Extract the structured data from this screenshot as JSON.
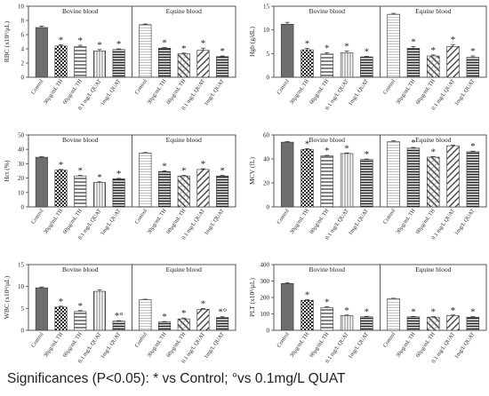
{
  "figure": {
    "footnote": "Significances (P<0.05): * vs Control; °vs 0.1mg/L QUAT",
    "categories": [
      "Control",
      "30µg/mL TH",
      "60µg/mL TH",
      "0.1 mg/L QUAT",
      "1mg/L QUAT"
    ],
    "groups": [
      "Bovine blood",
      "Equine blood"
    ],
    "colors": {
      "ink": "#222222",
      "frame": "#444444"
    }
  },
  "chart_data": [
    {
      "type": "bar",
      "id": "rbc",
      "ylabel": "RBC (x10⁶/μL)",
      "ylim": [
        0,
        10
      ],
      "ticks": [
        0,
        2,
        4,
        6,
        8,
        10
      ],
      "series": [
        {
          "group": "Bovine blood",
          "values": [
            7.0,
            4.4,
            4.3,
            3.7,
            3.9
          ],
          "errors": [
            0.2,
            0.15,
            0.2,
            0.2,
            0.1
          ],
          "marks": [
            "",
            "*",
            "*",
            "*",
            "*"
          ]
        },
        {
          "group": "Equine blood",
          "values": [
            7.4,
            4.1,
            3.3,
            3.8,
            2.9
          ],
          "errors": [
            0.1,
            0.1,
            0.1,
            0.3,
            0.1
          ],
          "marks": [
            "",
            "*",
            "*",
            "*",
            "*"
          ]
        }
      ]
    },
    {
      "type": "bar",
      "id": "hgb",
      "ylabel": "Hgb (g/dL)",
      "ylim": [
        0,
        15
      ],
      "ticks": [
        0,
        5,
        10,
        15
      ],
      "series": [
        {
          "group": "Bovine blood",
          "values": [
            11.2,
            5.8,
            4.9,
            5.2,
            4.3
          ],
          "errors": [
            0.4,
            0.3,
            0.3,
            0.3,
            0.1
          ],
          "marks": [
            "",
            "*",
            "*",
            "*",
            "*"
          ]
        },
        {
          "group": "Equine blood",
          "values": [
            13.3,
            6.1,
            4.5,
            6.5,
            4.2
          ],
          "errors": [
            0.2,
            0.4,
            0.2,
            0.4,
            0.3
          ],
          "marks": [
            "",
            "*",
            "*",
            "*",
            "*"
          ]
        }
      ]
    },
    {
      "type": "bar",
      "id": "hct",
      "ylabel": "Hct (%)",
      "ylim": [
        0,
        50
      ],
      "ticks": [
        0,
        10,
        20,
        30,
        40,
        50
      ],
      "series": [
        {
          "group": "Bovine blood",
          "values": [
            34.5,
            25.5,
            21.5,
            17.0,
            19.5
          ],
          "errors": [
            0.4,
            0.5,
            0.4,
            0.4,
            0.3
          ],
          "marks": [
            "",
            "*",
            "*",
            "*",
            "*"
          ]
        },
        {
          "group": "Equine blood",
          "values": [
            37.5,
            24.5,
            21.5,
            26.0,
            21.5
          ],
          "errors": [
            0.3,
            0.5,
            0.4,
            0.5,
            0.4
          ],
          "marks": [
            "",
            "*",
            "*",
            "*",
            "*"
          ]
        }
      ]
    },
    {
      "type": "bar",
      "id": "mcv",
      "ylabel": "MCV (fL)",
      "ylim": [
        0,
        60
      ],
      "ticks": [
        0,
        20,
        40,
        60
      ],
      "series": [
        {
          "group": "Bovine blood",
          "values": [
            54.0,
            48.0,
            42.5,
            44.5,
            39.5
          ],
          "errors": [
            0.5,
            0.6,
            0.5,
            0.5,
            0.4
          ],
          "marks": [
            "",
            "*",
            "*",
            "*",
            "*"
          ]
        },
        {
          "group": "Equine blood",
          "values": [
            54.5,
            49.0,
            41.5,
            51.0,
            46.0
          ],
          "errors": [
            0.6,
            0.6,
            0.5,
            0.5,
            0.5
          ],
          "marks": [
            "",
            "*",
            "*",
            "",
            "*"
          ]
        }
      ]
    },
    {
      "type": "bar",
      "id": "wbc",
      "ylabel": "WBC (x10³/µL)",
      "ylim": [
        0,
        15
      ],
      "ticks": [
        0,
        5,
        10,
        15
      ],
      "series": [
        {
          "group": "Bovine blood",
          "values": [
            9.7,
            5.3,
            4.3,
            8.9,
            2.1
          ],
          "errors": [
            0.2,
            0.2,
            0.2,
            0.3,
            0.1
          ],
          "marks": [
            "",
            "*",
            "*",
            "",
            "*°"
          ]
        },
        {
          "group": "Equine blood",
          "values": [
            7.0,
            1.9,
            2.6,
            4.8,
            2.9
          ],
          "errors": [
            0.1,
            0.1,
            0.2,
            0.2,
            0.2
          ],
          "marks": [
            "",
            "*",
            "*",
            "*",
            "*°"
          ]
        }
      ]
    },
    {
      "type": "bar",
      "id": "plt",
      "ylabel": "PLT (x10³/µL)",
      "ylim": [
        0,
        400
      ],
      "ticks": [
        0,
        100,
        200,
        300,
        400
      ],
      "series": [
        {
          "group": "Bovine blood",
          "values": [
            285,
            182,
            138,
            90,
            82
          ],
          "errors": [
            4,
            5,
            5,
            3,
            3
          ],
          "marks": [
            "",
            "*",
            "*",
            "*",
            "*"
          ]
        },
        {
          "group": "Equine blood",
          "values": [
            192,
            82,
            80,
            90,
            80
          ],
          "errors": [
            3,
            3,
            3,
            3,
            3
          ],
          "marks": [
            "",
            "*",
            "*",
            "*",
            "*"
          ]
        }
      ]
    }
  ]
}
